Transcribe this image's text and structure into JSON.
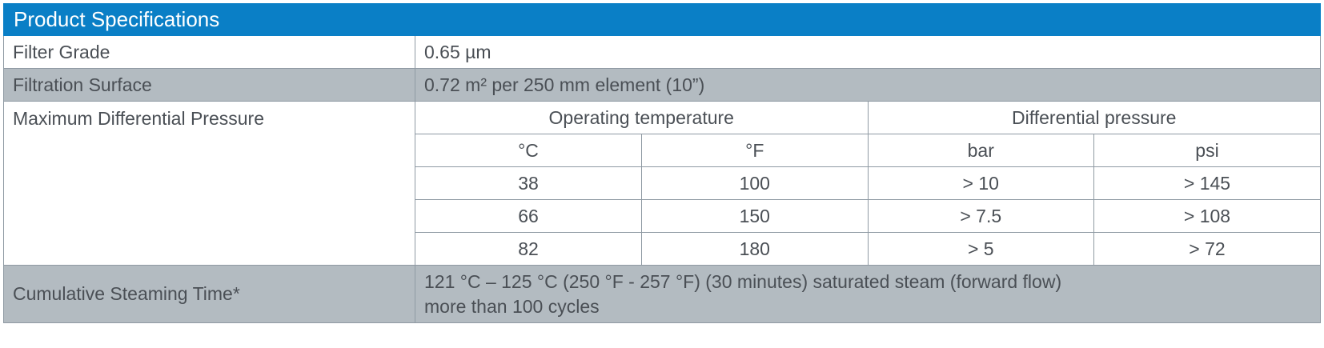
{
  "title": "Product Specifications",
  "filter_grade": {
    "label": "Filter Grade",
    "value": "0.65 µm"
  },
  "filtration_surface": {
    "label": "Filtration Surface",
    "value": "0.72 m² per 250 mm element (10”)"
  },
  "max_pressure": {
    "label": "Maximum Differential Pressure",
    "group_headers": [
      "Operating temperature",
      "Differential pressure"
    ],
    "unit_headers": [
      "°C",
      "°F",
      "bar",
      "psi"
    ],
    "rows": [
      [
        "38",
        "100",
        "> 10",
        "> 145"
      ],
      [
        "66",
        "150",
        "> 7.5",
        "> 108"
      ],
      [
        "82",
        "180",
        "> 5",
        "> 72"
      ]
    ]
  },
  "steaming": {
    "label": "Cumulative Steaming Time*",
    "line1": "121 °C – 125 °C (250 °F - 257 °F) (30 minutes) saturated steam (forward flow)",
    "line2": "more than 100 cycles"
  },
  "colors": {
    "header_bg": "#0a7fc6",
    "shade_bg": "#b3bbc1",
    "border": "#8f9aa3",
    "text": "#4a4f55"
  }
}
